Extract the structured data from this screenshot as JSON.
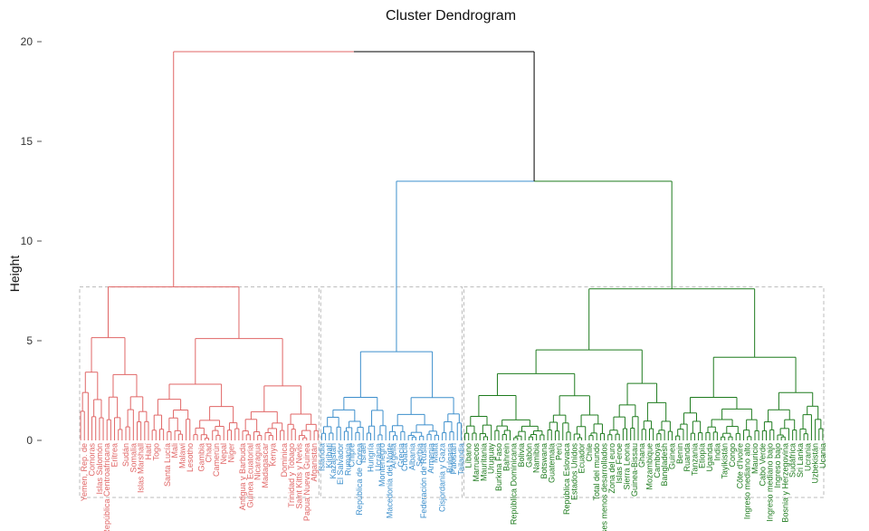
{
  "chart_data": {
    "type": "dendrogram",
    "title": "Cluster Dendrogram",
    "ylabel": "Height",
    "ylim": [
      0,
      20
    ],
    "yticks": [
      0,
      5,
      10,
      15,
      20
    ],
    "ytick_labels": [
      "0",
      "5",
      "10",
      "15",
      "20"
    ],
    "cut_height": 7.7,
    "grid": false,
    "clusters": [
      {
        "color": "#e06666",
        "leaf_count": 64,
        "merge_height": 7.7,
        "visible_labels": [
          "Yemen, Rep. de",
          "Comoras",
          "Islas Salomón",
          "República Centroafricana",
          "Eritrea",
          "Sudán",
          "Somalia",
          "Islas Marshall",
          "Haití",
          "Togo",
          "Santa Lucía",
          "Mali",
          "Malawi",
          "Lesotho",
          "Gambia",
          "Chad",
          "Camerún",
          "Nepal",
          "Niger",
          "Antigua y Barbuda",
          "Guinea Ecuatorial",
          "Nicaragua",
          "Madagascar",
          "Kenya",
          "Dominica",
          "Trinidad y Tobago",
          "Saint Kitts y Nevis",
          "Papua Nueva Guinea",
          "Afganistán"
        ]
      },
      {
        "color": "#3d8fcc",
        "leaf_count": 38,
        "merge_height": 4.45,
        "visible_labels": [
          "Islandia",
          "Kiribati",
          "Kazajstán",
          "El Salvador",
          "Rumania",
          "Chipre",
          "República de Corea",
          "Israel",
          "Hungría",
          "Ucrania",
          "Montenegro",
          "Macedonia del Norte",
          "Argelia",
          "Grecia",
          "Croacia",
          "Albania",
          "Serbia",
          "Federación de Rusia",
          "Armenia",
          "Malta",
          "Cisjordania y Gaza",
          "Bulgaria",
          "Pakistán",
          "Tailandia"
        ]
      },
      {
        "color": "#1e7b1e",
        "leaf_count": 96,
        "merge_height": 7.6,
        "visible_labels": [
          "Líbano",
          "Marruecos",
          "Mauritania",
          "Uruguay",
          "Burkina Faso",
          "Bahrein",
          "República Dominicana",
          "Bolivia",
          "Gabón",
          "Namibia",
          "Botswana",
          "Guatemala",
          "Perú",
          "República Eslovaca",
          "Estados Unidos",
          "Ecuador",
          "Chile",
          "Total del mundo",
          "Países menos desarrollados",
          "Zona del euro",
          "Islas Feroe",
          "Sierra Leona",
          "Guinea-Bissau",
          "Ghana",
          "Mozambique",
          "Camboya",
          "Bangladesh",
          "Guinea",
          "Benin",
          "Ruanda",
          "Tanzania",
          "Etiopía",
          "Uganda",
          "India",
          "Tayikistán",
          "Congo",
          "Côte d'Ivoire",
          "Ingreso mediano alto",
          "Mauricio",
          "Cabo Verde",
          "Ingreso mediano bajo",
          "Ingreso bajo",
          "Bosnia y Herzegovina",
          "Sudáfrica",
          "Sri Lanka",
          "Ucrania",
          "Uzbekistán",
          "Ucania"
        ]
      }
    ],
    "inter_cluster_merges": [
      {
        "between": [
          "blue",
          "green"
        ],
        "height": 13.0,
        "color": "#1e7b1e"
      },
      {
        "between": [
          "red",
          "blue+green"
        ],
        "height": 19.5,
        "color": "#000000"
      }
    ]
  }
}
